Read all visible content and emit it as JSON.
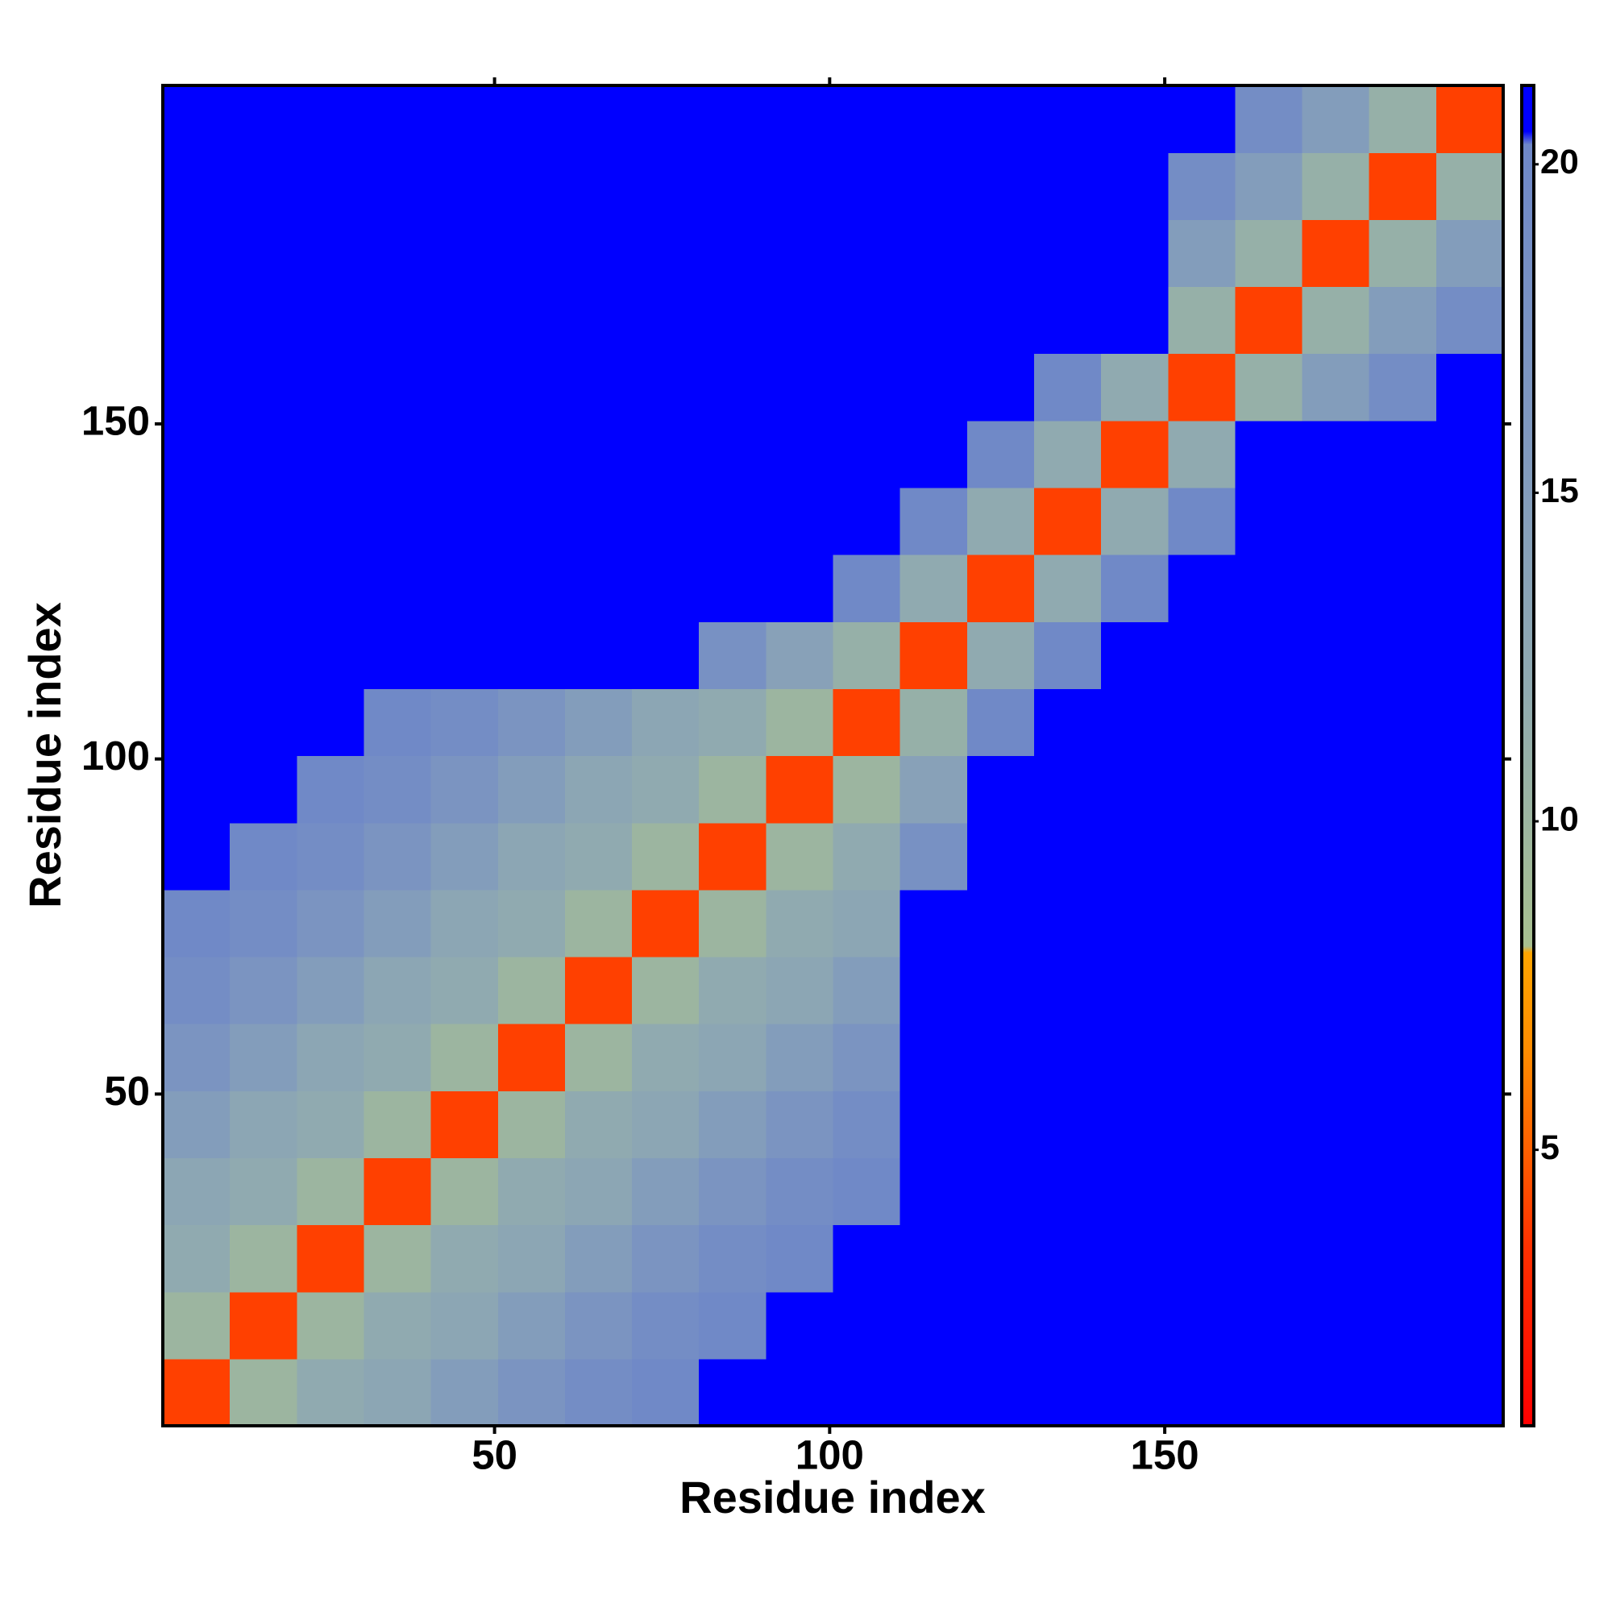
{
  "chart_data": {
    "type": "heatmap",
    "x_label": "Residue index",
    "y_label": "Residue index",
    "x_bins": [
      0.5,
      10.5,
      20.5,
      30.5,
      40.5,
      50.5,
      60.5,
      70.5,
      80.5,
      90.5,
      100.5,
      110.5,
      120.5,
      130.5,
      140.5,
      150.5,
      160.5,
      170.5,
      180.5,
      190.5,
      200.5
    ],
    "y_bins": [
      0.5,
      10.5,
      20.5,
      30.5,
      40.5,
      50.5,
      60.5,
      70.5,
      80.5,
      90.5,
      100.5,
      110.5,
      120.5,
      130.5,
      140.5,
      150.5,
      160.5,
      170.5,
      180.5,
      190.5,
      200.5
    ],
    "values": [
      [
        4,
        10,
        12,
        13,
        15,
        17,
        19,
        20,
        21,
        21,
        21,
        21,
        21,
        21,
        21,
        21,
        21,
        21,
        21,
        21
      ],
      [
        10,
        4,
        10,
        12,
        13,
        15,
        17,
        19,
        20,
        21,
        21,
        21,
        21,
        21,
        21,
        21,
        21,
        21,
        21,
        21
      ],
      [
        12,
        10,
        4,
        10,
        12,
        13,
        15,
        17,
        19,
        20,
        21,
        21,
        21,
        21,
        21,
        21,
        21,
        21,
        21,
        21
      ],
      [
        13,
        12,
        10,
        4,
        10,
        12,
        13,
        15,
        17,
        19,
        20,
        21,
        21,
        21,
        21,
        21,
        21,
        21,
        21,
        21
      ],
      [
        15,
        13,
        12,
        10,
        4,
        10,
        12,
        13,
        15,
        17,
        19,
        21,
        21,
        21,
        21,
        21,
        21,
        21,
        21,
        21
      ],
      [
        17,
        15,
        13,
        12,
        10,
        4,
        10,
        12,
        13,
        15,
        17,
        21,
        21,
        21,
        21,
        21,
        21,
        21,
        21,
        21
      ],
      [
        19,
        17,
        15,
        13,
        12,
        10,
        4,
        10,
        12,
        13,
        15,
        21,
        21,
        21,
        21,
        21,
        21,
        21,
        21,
        21
      ],
      [
        20,
        19,
        17,
        15,
        13,
        12,
        10,
        4,
        10,
        12,
        13,
        21,
        21,
        21,
        21,
        21,
        21,
        21,
        21,
        21
      ],
      [
        21,
        20,
        19,
        17,
        15,
        13,
        12,
        10,
        4,
        10,
        12,
        18,
        21,
        21,
        21,
        21,
        21,
        21,
        21,
        21
      ],
      [
        21,
        21,
        20,
        19,
        17,
        15,
        13,
        12,
        10,
        4,
        10,
        14,
        21,
        21,
        21,
        21,
        21,
        21,
        21,
        21
      ],
      [
        21,
        21,
        21,
        20,
        19,
        17,
        15,
        13,
        12,
        10,
        4,
        11,
        20,
        21,
        21,
        21,
        21,
        21,
        21,
        21
      ],
      [
        21,
        21,
        21,
        21,
        21,
        21,
        21,
        21,
        18,
        14,
        11,
        4,
        12,
        20,
        21,
        21,
        21,
        21,
        21,
        21
      ],
      [
        21,
        21,
        21,
        21,
        21,
        21,
        21,
        21,
        21,
        21,
        20,
        12,
        4,
        12,
        20,
        21,
        21,
        21,
        21,
        21
      ],
      [
        21,
        21,
        21,
        21,
        21,
        21,
        21,
        21,
        21,
        21,
        21,
        20,
        12,
        4,
        12,
        20,
        21,
        21,
        21,
        21
      ],
      [
        21,
        21,
        21,
        21,
        21,
        21,
        21,
        21,
        21,
        21,
        21,
        21,
        20,
        12,
        4,
        12,
        21,
        21,
        21,
        21
      ],
      [
        21,
        21,
        21,
        21,
        21,
        21,
        21,
        21,
        21,
        21,
        21,
        21,
        21,
        20,
        12,
        4,
        11,
        15,
        19,
        21
      ],
      [
        21,
        21,
        21,
        21,
        21,
        21,
        21,
        21,
        21,
        21,
        21,
        21,
        21,
        21,
        21,
        11,
        4,
        11,
        15,
        19
      ],
      [
        21,
        21,
        21,
        21,
        21,
        21,
        21,
        21,
        21,
        21,
        21,
        21,
        21,
        21,
        21,
        15,
        11,
        4,
        11,
        15
      ],
      [
        21,
        21,
        21,
        21,
        21,
        21,
        21,
        21,
        21,
        21,
        21,
        21,
        21,
        21,
        21,
        19,
        15,
        11,
        4,
        11
      ],
      [
        21,
        21,
        21,
        21,
        21,
        21,
        21,
        21,
        21,
        21,
        21,
        21,
        21,
        21,
        21,
        21,
        19,
        15,
        11,
        4
      ]
    ],
    "xlim": [
      0.5,
      200.5
    ],
    "ylim": [
      0.5,
      200.5
    ],
    "xticks": [
      50,
      100,
      150
    ],
    "yticks": [
      50,
      100,
      150
    ],
    "clim": [
      0.8,
      21.2
    ],
    "cticks": [
      5,
      10,
      15,
      20
    ],
    "colorscale": [
      [
        0.8,
        "#ff0000"
      ],
      [
        3.5,
        "#ff3000"
      ],
      [
        5,
        "#ff6000"
      ],
      [
        6.5,
        "#ff8c00"
      ],
      [
        8,
        "#ffa500"
      ],
      [
        8.1,
        "#a8c090"
      ],
      [
        12,
        "#90aab0"
      ],
      [
        16,
        "#7f98bf"
      ],
      [
        20.3,
        "#6f88c8"
      ],
      [
        20.5,
        "#0000ff"
      ]
    ]
  }
}
